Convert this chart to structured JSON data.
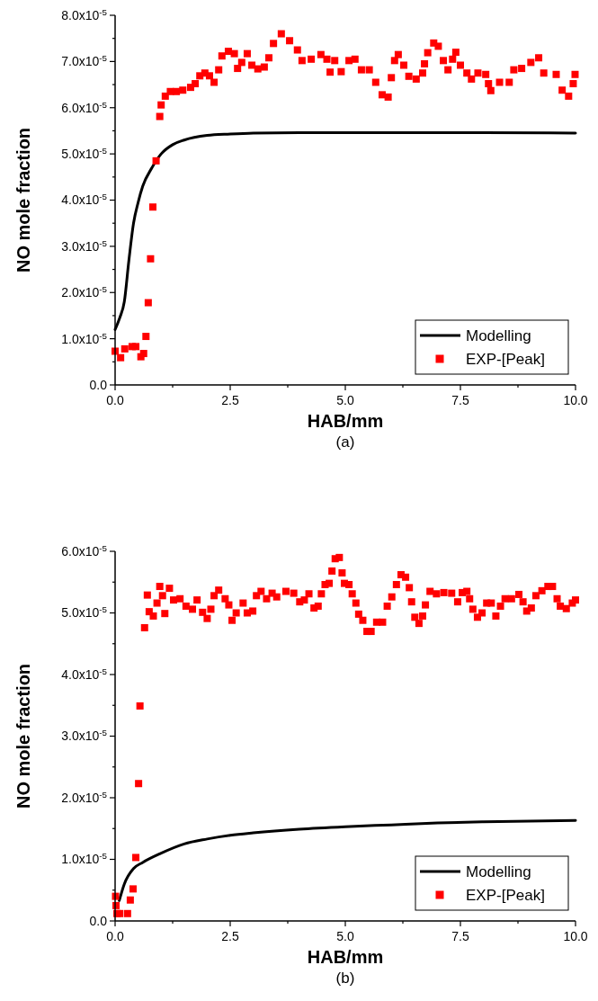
{
  "chart_data": [
    {
      "type": "scatter",
      "xlabel": "HAB/mm",
      "ylabel": "NO mole fraction",
      "annotations": [
        "(a)"
      ],
      "legend": "bottom right",
      "xlim": [
        0,
        10
      ],
      "ylim": [
        0,
        8e-05
      ],
      "xticks": [
        {
          "value": 0,
          "label": "0.0"
        },
        {
          "value": 1.25,
          "label": null
        },
        {
          "value": 2.5,
          "label": "2.5"
        },
        {
          "value": 3.75,
          "label": null
        },
        {
          "value": 5,
          "label": "5.0"
        },
        {
          "value": 6.25,
          "label": null
        },
        {
          "value": 7.5,
          "label": "7.5"
        },
        {
          "value": 8.75,
          "label": null
        },
        {
          "value": 10,
          "label": "10.0"
        }
      ],
      "yticks": [
        {
          "value": 0,
          "label": "0.0"
        },
        {
          "value": 5e-06,
          "label": null
        },
        {
          "value": 1e-05,
          "label": "1.0x10$^{-5}$"
        },
        {
          "value": 1.5e-05,
          "label": null
        },
        {
          "value": 2e-05,
          "label": "2.0x10$^{-5}$"
        },
        {
          "value": 2.5e-05,
          "label": null
        },
        {
          "value": 3e-05,
          "label": "3.0x10$^{-5}$"
        },
        {
          "value": 3.5e-05,
          "label": null
        },
        {
          "value": 4e-05,
          "label": "4.0x10$^{-5}$"
        },
        {
          "value": 4.5e-05,
          "label": null
        },
        {
          "value": 5e-05,
          "label": "5.0x10$^{-5}$"
        },
        {
          "value": 5.5e-05,
          "label": null
        },
        {
          "value": 6e-05,
          "label": "6.0x10$^{-5}$"
        },
        {
          "value": 6.5e-05,
          "label": null
        },
        {
          "value": 7e-05,
          "label": "7.0x10$^{-5}$"
        },
        {
          "value": 7.5e-05,
          "label": null
        },
        {
          "value": 8e-05,
          "label": "8.0x10$^{-5}$"
        }
      ],
      "series": [
        {
          "name": "Modelling",
          "type": "line",
          "color": "#000000",
          "marker": "none",
          "line_style": "solid",
          "x": [
            0,
            0.1,
            0.2,
            0.3,
            0.4,
            0.5,
            0.6,
            0.8,
            1.0,
            1.25,
            1.5,
            2.0,
            2.5,
            3.0,
            4.0,
            5.0,
            6.0,
            8.0,
            10.0
          ],
          "values": [
            1.2e-05,
            1.45e-05,
            1.8e-05,
            2.7e-05,
            3.5e-05,
            3.95e-05,
            4.3e-05,
            4.7e-05,
            5e-05,
            5.2e-05,
            5.3e-05,
            5.4e-05,
            5.43e-05,
            5.45e-05,
            5.46e-05,
            5.46e-05,
            5.46e-05,
            5.46e-05,
            5.45e-05
          ]
        },
        {
          "name": "EXP-[Peak]",
          "type": "scatter",
          "color": "#ff0000",
          "marker": "square",
          "x": [
            0,
            0.12,
            0.21,
            0.37,
            0.45,
            0.56,
            0.62,
            0.67,
            0.72,
            0.77,
            0.82,
            0.89,
            0.97,
            1.0,
            1.09,
            1.2,
            1.33,
            1.47,
            1.64,
            1.74,
            1.84,
            1.95,
            2.05,
            2.15,
            2.25,
            2.32,
            2.46,
            2.59,
            2.66,
            2.75,
            2.87,
            2.97,
            3.1,
            3.24,
            3.34,
            3.44,
            3.61,
            3.79,
            3.96,
            4.06,
            4.26,
            4.47,
            4.6,
            4.67,
            4.77,
            4.91,
            5.08,
            5.21,
            5.35,
            5.52,
            5.66,
            5.8,
            5.93,
            6.0,
            6.07,
            6.15,
            6.27,
            6.38,
            6.54,
            6.68,
            6.72,
            6.79,
            6.92,
            7.02,
            7.13,
            7.23,
            7.33,
            7.4,
            7.5,
            7.64,
            7.74,
            7.88,
            8.05,
            8.11,
            8.16,
            8.35,
            8.56,
            8.66,
            8.83,
            9.03,
            9.2,
            9.31,
            9.58,
            9.71,
            9.85,
            9.95,
            9.99
          ],
          "values": [
            7.3e-06,
            5.9e-06,
            7.8e-06,
            8.3e-06,
            8.3e-06,
            6.1e-06,
            6.8e-06,
            1.05e-05,
            1.78e-05,
            2.73e-05,
            3.85e-05,
            4.85e-05,
            5.81e-05,
            6.06e-05,
            6.25e-05,
            6.35e-05,
            6.35e-05,
            6.38e-05,
            6.44e-05,
            6.52e-05,
            6.69e-05,
            6.75e-05,
            6.69e-05,
            6.55e-05,
            6.82e-05,
            7.12e-05,
            7.22e-05,
            7.17e-05,
            6.85e-05,
            6.98e-05,
            7.17e-05,
            6.92e-05,
            6.84e-05,
            6.88e-05,
            7.08e-05,
            7.39e-05,
            7.6e-05,
            7.45e-05,
            7.25e-05,
            7.02e-05,
            7.05e-05,
            7.15e-05,
            7.05e-05,
            6.77e-05,
            7.02e-05,
            6.78e-05,
            7.02e-05,
            7.05e-05,
            6.82e-05,
            6.82e-05,
            6.55e-05,
            6.28e-05,
            6.23e-05,
            6.65e-05,
            7.02e-05,
            7.15e-05,
            6.92e-05,
            6.68e-05,
            6.62e-05,
            6.75e-05,
            6.95e-05,
            7.19e-05,
            7.4e-05,
            7.33e-05,
            7.02e-05,
            6.82e-05,
            7.05e-05,
            7.2e-05,
            6.92e-05,
            6.75e-05,
            6.62e-05,
            6.75e-05,
            6.72e-05,
            6.52e-05,
            6.37e-05,
            6.55e-05,
            6.55e-05,
            6.82e-05,
            6.85e-05,
            6.98e-05,
            7.08e-05,
            6.75e-05,
            6.72e-05,
            6.38e-05,
            6.25e-05,
            6.52e-05,
            6.72e-05
          ]
        }
      ]
    },
    {
      "type": "scatter",
      "xlabel": "HAB/mm",
      "ylabel": "NO mole fraction",
      "annotations": [
        "(b)"
      ],
      "legend": "bottom right",
      "xlim": [
        0,
        10
      ],
      "ylim": [
        0,
        6e-05
      ],
      "xticks": [
        {
          "value": 0,
          "label": "0.0"
        },
        {
          "value": 1.25,
          "label": null
        },
        {
          "value": 2.5,
          "label": "2.5"
        },
        {
          "value": 3.75,
          "label": null
        },
        {
          "value": 5,
          "label": "5.0"
        },
        {
          "value": 6.25,
          "label": null
        },
        {
          "value": 7.5,
          "label": "7.5"
        },
        {
          "value": 8.75,
          "label": null
        },
        {
          "value": 10,
          "label": "10.0"
        }
      ],
      "yticks": [
        {
          "value": 0,
          "label": "0.0"
        },
        {
          "value": 5e-06,
          "label": null
        },
        {
          "value": 1e-05,
          "label": "1.0x10$^{-5}$"
        },
        {
          "value": 1.5e-05,
          "label": null
        },
        {
          "value": 2e-05,
          "label": "2.0x10$^{-5}$"
        },
        {
          "value": 2.5e-05,
          "label": null
        },
        {
          "value": 3e-05,
          "label": "3.0x10$^{-5}$"
        },
        {
          "value": 3.5e-05,
          "label": null
        },
        {
          "value": 4e-05,
          "label": "4.0x10$^{-5}$"
        },
        {
          "value": 4.5e-05,
          "label": null
        },
        {
          "value": 5e-05,
          "label": "5.0x10$^{-5}$"
        },
        {
          "value": 5.5e-05,
          "label": null
        },
        {
          "value": 6e-05,
          "label": "6.0x10$^{-5}$"
        }
      ],
      "series": [
        {
          "name": "Modelling",
          "type": "line",
          "color": "#000000",
          "marker": "none",
          "line_style": "solid",
          "x": [
            0.09,
            0.2,
            0.4,
            0.6,
            1.0,
            1.5,
            2.0,
            2.5,
            3.0,
            4.0,
            5.0,
            6.0,
            7.0,
            8.0,
            10.0
          ],
          "values": [
            3.3e-06,
            6e-06,
            8.5e-06,
            9.5e-06,
            1.1e-05,
            1.25e-05,
            1.33e-05,
            1.39e-05,
            1.43e-05,
            1.49e-05,
            1.53e-05,
            1.56e-05,
            1.59e-05,
            1.61e-05,
            1.63e-05
          ]
        },
        {
          "name": "EXP-[Peak]",
          "type": "scatter",
          "color": "#ff0000",
          "marker": "square",
          "x": [
            0.01,
            0.02,
            0.04,
            0.1,
            0.27,
            0.33,
            0.39,
            0.45,
            0.51,
            0.54,
            0.64,
            0.7,
            0.74,
            0.83,
            0.91,
            0.97,
            1.03,
            1.08,
            1.18,
            1.27,
            1.41,
            1.54,
            1.68,
            1.78,
            1.9,
            2.0,
            2.08,
            2.15,
            2.25,
            2.39,
            2.47,
            2.54,
            2.63,
            2.78,
            2.87,
            2.99,
            3.07,
            3.17,
            3.29,
            3.41,
            3.51,
            3.71,
            3.88,
            4.01,
            4.11,
            4.21,
            4.32,
            4.41,
            4.48,
            4.56,
            4.65,
            4.71,
            4.78,
            4.87,
            4.93,
            4.98,
            5.08,
            5.15,
            5.23,
            5.29,
            5.38,
            5.47,
            5.56,
            5.68,
            5.81,
            5.91,
            6.01,
            6.11,
            6.21,
            6.31,
            6.39,
            6.44,
            6.51,
            6.6,
            6.68,
            6.74,
            6.84,
            6.98,
            7.14,
            7.31,
            7.44,
            7.54,
            7.64,
            7.7,
            7.77,
            7.87,
            7.97,
            8.07,
            8.17,
            8.27,
            8.37,
            8.47,
            8.61,
            8.77,
            8.86,
            8.94,
            9.04,
            9.14,
            9.27,
            9.4,
            9.5,
            9.6,
            9.67,
            9.8,
            9.93,
            10.0
          ],
          "values": [
            4e-06,
            2.5e-06,
            1.2e-06,
            1.2e-06,
            1.2e-06,
            3.4e-06,
            5.2e-06,
            1.03e-05,
            2.23e-05,
            3.49e-05,
            4.76e-05,
            5.29e-05,
            5.02e-05,
            4.95e-05,
            5.16e-05,
            5.43e-05,
            5.28e-05,
            4.99e-05,
            5.4e-05,
            5.21e-05,
            5.23e-05,
            5.11e-05,
            5.06e-05,
            5.21e-05,
            5.01e-05,
            4.91e-05,
            5.06e-05,
            5.28e-05,
            5.37e-05,
            5.23e-05,
            5.13e-05,
            4.88e-05,
            5e-05,
            5.16e-05,
            5e-05,
            5.03e-05,
            5.28e-05,
            5.35e-05,
            5.23e-05,
            5.32e-05,
            5.26e-05,
            5.35e-05,
            5.32e-05,
            5.18e-05,
            5.21e-05,
            5.31e-05,
            5.08e-05,
            5.11e-05,
            5.31e-05,
            5.46e-05,
            5.48e-05,
            5.68e-05,
            5.88e-05,
            5.9e-05,
            5.65e-05,
            5.48e-05,
            5.46e-05,
            5.31e-05,
            5.16e-05,
            4.98e-05,
            4.88e-05,
            4.7e-05,
            4.7e-05,
            4.85e-05,
            4.85e-05,
            5.11e-05,
            5.26e-05,
            5.46e-05,
            5.62e-05,
            5.58e-05,
            5.41e-05,
            5.18e-05,
            4.93e-05,
            4.83e-05,
            4.95e-05,
            5.13e-05,
            5.35e-05,
            5.31e-05,
            5.33e-05,
            5.32e-05,
            5.18e-05,
            5.33e-05,
            5.35e-05,
            5.23e-05,
            5.06e-05,
            4.93e-05,
            5e-05,
            5.16e-05,
            5.16e-05,
            4.95e-05,
            5.11e-05,
            5.23e-05,
            5.23e-05,
            5.3e-05,
            5.18e-05,
            5.03e-05,
            5.08e-05,
            5.28e-05,
            5.36e-05,
            5.43e-05,
            5.43e-05,
            5.23e-05,
            5.11e-05,
            5.07e-05,
            5.16e-05,
            5.21e-05
          ]
        }
      ]
    }
  ]
}
